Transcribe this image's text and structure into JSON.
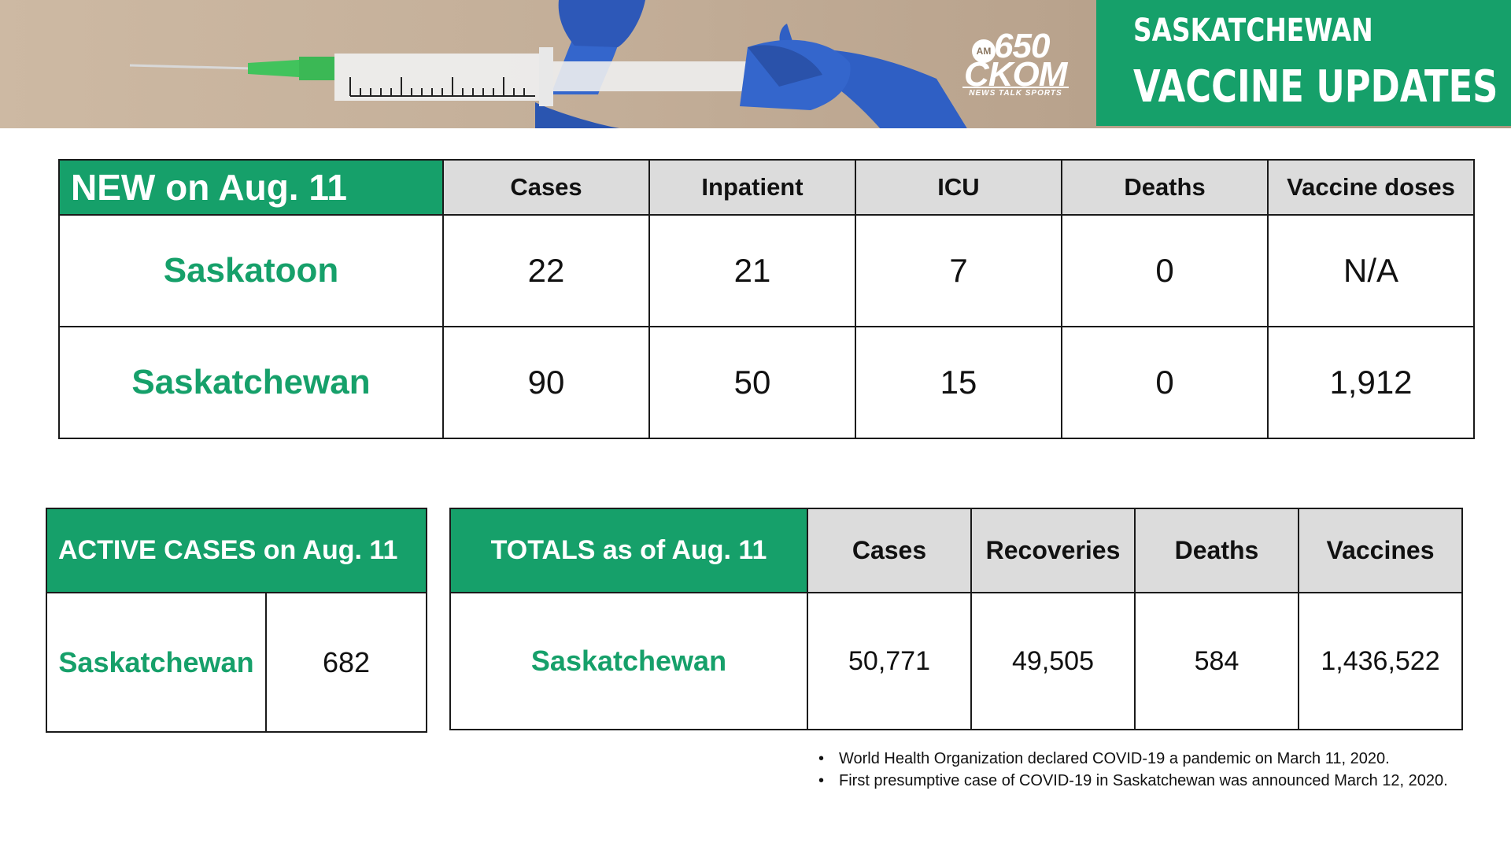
{
  "banner": {
    "logo": {
      "am": "AM",
      "number": "650",
      "name": "CKOM",
      "tagline": "NEWS TALK SPORTS"
    },
    "title_line1": "SASKATCHEWAN",
    "title_line2": "VACCINE UPDATES",
    "colors": {
      "green": "#16a06a",
      "glove": "#2f5fc4",
      "needle_hub": "#33c45a"
    }
  },
  "new_table": {
    "title": "NEW on Aug. 11",
    "columns": [
      "Cases",
      "Inpatient",
      "ICU",
      "Deaths",
      "Vaccine doses"
    ],
    "rows": [
      {
        "region": "Saskatoon",
        "values": [
          "22",
          "21",
          "7",
          "0",
          "N/A"
        ]
      },
      {
        "region": "Saskatchewan",
        "values": [
          "90",
          "50",
          "15",
          "0",
          "1,912"
        ]
      }
    ]
  },
  "active_table": {
    "title": "ACTIVE CASES on Aug. 11",
    "rows": [
      {
        "region": "Saskatchewan",
        "value": "682"
      }
    ]
  },
  "totals_table": {
    "title": "TOTALS as of Aug. 11",
    "columns": [
      "Cases",
      "Recoveries",
      "Deaths",
      "Vaccines"
    ],
    "rows": [
      {
        "region": "Saskatchewan",
        "values": [
          "50,771",
          "49,505",
          "584",
          "1,436,522"
        ]
      }
    ]
  },
  "notes": [
    "World Health Organization declared COVID-19 a pandemic on March 11, 2020.",
    "First presumptive case of COVID-19 in Saskatchewan was announced March 12, 2020."
  ]
}
